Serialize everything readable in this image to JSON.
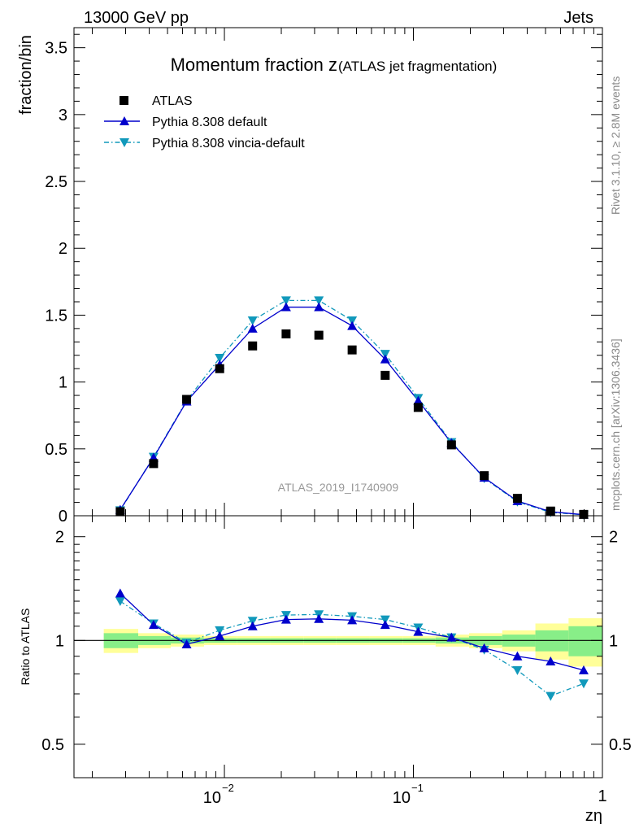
{
  "header": {
    "left": "13000 GeV pp",
    "right": "Jets"
  },
  "side_labels": {
    "rivet": "Rivet 3.1.10, ≥ 2.8M events",
    "mcplots": "mcplots.cern.ch [arXiv:1306.3436]"
  },
  "chart_data": [
    {
      "type": "scatter",
      "title_main": "Momentum fraction z",
      "title_sub": "(ATLAS jet fragmentation)",
      "ylabel": "fraction/bin",
      "xlabel": "zη",
      "xscale": "log",
      "xlim": [
        0.0016,
        1.0
      ],
      "ylim": [
        0,
        3.65
      ],
      "yticks": [
        "0",
        "0.5",
        "1",
        "1.5",
        "2",
        "2.5",
        "3",
        "3.5"
      ],
      "xtick_labels": [
        "10",
        "−2",
        "10",
        "−1",
        "1"
      ],
      "watermark": "ATLAS_2019_I1740909",
      "legend_position": "top-left",
      "x": [
        0.00281,
        0.00422,
        0.00631,
        0.00944,
        0.0141,
        0.0212,
        0.0316,
        0.0474,
        0.0709,
        0.106,
        0.159,
        0.237,
        0.355,
        0.532,
        0.796
      ],
      "series": [
        {
          "name": "ATLAS",
          "style": "data",
          "color": "#000000",
          "values": [
            0.03,
            0.39,
            0.87,
            1.1,
            1.27,
            1.36,
            1.35,
            1.24,
            1.05,
            0.81,
            0.53,
            0.3,
            0.13,
            0.035,
            0.01
          ]
        },
        {
          "name": "Pythia 8.308 default",
          "style": "solid",
          "color": "#0000cc",
          "values": [
            0.045,
            0.435,
            0.855,
            1.13,
            1.4,
            1.56,
            1.56,
            1.42,
            1.17,
            0.86,
            0.545,
            0.285,
            0.11,
            0.03,
            0.008
          ]
        },
        {
          "name": "Pythia 8.308 vincia-default",
          "style": "dashdot",
          "color": "#1199bb",
          "values": [
            0.04,
            0.44,
            0.86,
            1.18,
            1.46,
            1.61,
            1.61,
            1.46,
            1.21,
            0.88,
            0.55,
            0.28,
            0.105,
            0.025,
            0.007
          ]
        }
      ]
    },
    {
      "type": "line",
      "ylabel": "Ratio to ATLAS",
      "yscale": "log",
      "ylim": [
        0.4,
        2.3
      ],
      "yticks": [
        "0.5",
        "1",
        "2"
      ],
      "series": [
        {
          "name": "Pythia 8.308 default",
          "color": "#0000cc",
          "values": [
            1.37,
            1.11,
            0.975,
            1.03,
            1.1,
            1.15,
            1.155,
            1.145,
            1.11,
            1.06,
            1.02,
            0.95,
            0.9,
            0.87,
            0.82
          ]
        },
        {
          "name": "Pythia 8.308 vincia-default",
          "color": "#1199bb",
          "values": [
            1.3,
            1.12,
            0.985,
            1.07,
            1.14,
            1.185,
            1.19,
            1.175,
            1.15,
            1.09,
            1.02,
            0.94,
            0.82,
            0.69,
            0.75
          ]
        }
      ],
      "band_edges": [
        0.0023,
        0.0035,
        0.0052,
        0.0078,
        0.0117,
        0.0175,
        0.0262,
        0.0391,
        0.0586,
        0.0877,
        0.131,
        0.197,
        0.295,
        0.442,
        0.662,
        1.0
      ],
      "band_inner": [
        0.05,
        0.03,
        0.02,
        0.015,
        0.015,
        0.015,
        0.015,
        0.015,
        0.015,
        0.015,
        0.02,
        0.03,
        0.04,
        0.07,
        0.1
      ],
      "band_outer": [
        0.08,
        0.05,
        0.04,
        0.03,
        0.03,
        0.03,
        0.03,
        0.03,
        0.03,
        0.03,
        0.04,
        0.05,
        0.07,
        0.12,
        0.16
      ],
      "colors": {
        "band_inner": "#88ee88",
        "band_outer": "#ffff99"
      }
    }
  ]
}
